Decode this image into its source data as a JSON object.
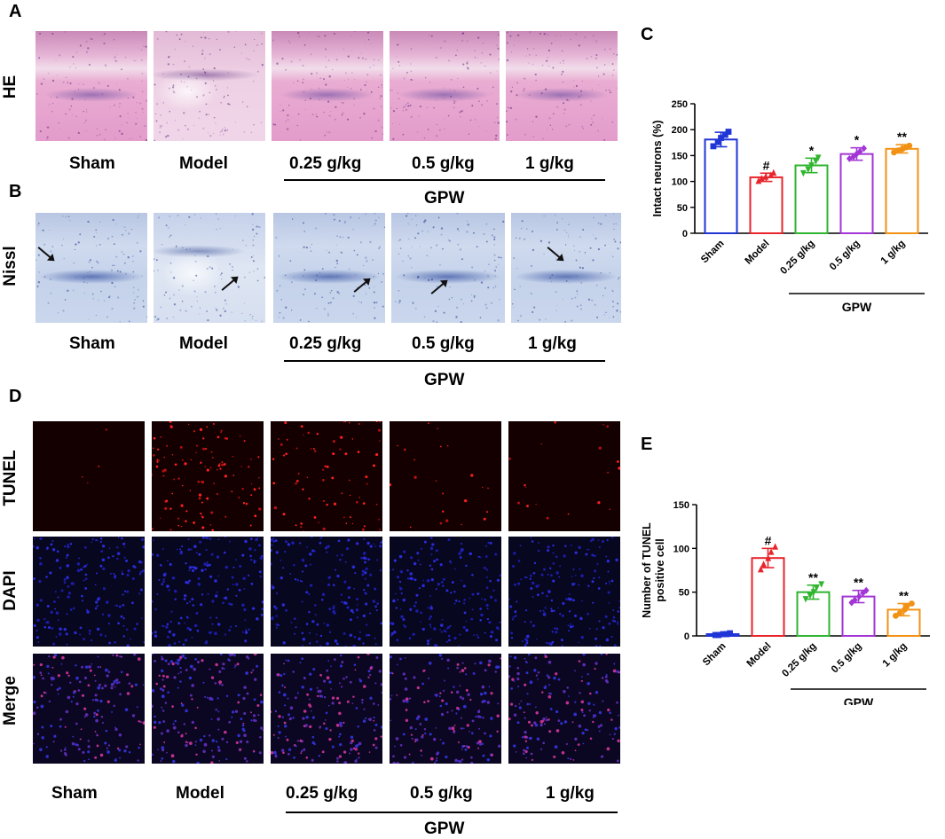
{
  "panels": {
    "A": {
      "letter": "A",
      "row_label": "HE"
    },
    "B": {
      "letter": "B",
      "row_label": "Nissl"
    },
    "D": {
      "letter": "D",
      "row_labels": [
        "TUNEL",
        "DAPI",
        "Merge"
      ]
    },
    "C": {
      "letter": "C"
    },
    "E": {
      "letter": "E"
    }
  },
  "groups": [
    "Sham",
    "Model",
    "0.25 g/kg",
    "0.5 g/kg",
    "1 g/kg"
  ],
  "treatment_label": "GPW",
  "colors": {
    "Sham": "#1f35d6",
    "Model": "#e8252c",
    "0.25 g/kg": "#2fb52f",
    "0.5 g/kg": "#a236d6",
    "1 g/kg": "#f29215"
  },
  "chart_data": [
    {
      "panel": "C",
      "type": "bar",
      "categories": [
        "Sham",
        "Model",
        "0.25 g/kg",
        "0.5 g/kg",
        "1 g/kg"
      ],
      "values": [
        181,
        108,
        131,
        153,
        163
      ],
      "errors": [
        14,
        8,
        14,
        12,
        8
      ],
      "points": [
        [
          168,
          176,
          184,
          190,
          196
        ],
        [
          101,
          106,
          109,
          112,
          117
        ],
        [
          116,
          123,
          131,
          139,
          146
        ],
        [
          144,
          148,
          153,
          158,
          164
        ],
        [
          156,
          160,
          163,
          166,
          169
        ]
      ],
      "significance": [
        "",
        "#",
        "*",
        "*",
        "**"
      ],
      "title": "",
      "xlabel": "",
      "ylabel": "Intact neurons (%)",
      "ylim": [
        0,
        250
      ],
      "yticks": [
        0,
        50,
        100,
        150,
        200,
        250
      ],
      "group_label": "GPW"
    },
    {
      "panel": "E",
      "type": "bar",
      "categories": [
        "Sham",
        "Model",
        "0.25 g/kg",
        "0.5 g/kg",
        "1 g/kg"
      ],
      "values": [
        2,
        89,
        50,
        45,
        30
      ],
      "errors": [
        1,
        11,
        8,
        7,
        7
      ],
      "points": [
        [
          1,
          1,
          2,
          2,
          3
        ],
        [
          76,
          82,
          89,
          96,
          102
        ],
        [
          42,
          46,
          50,
          55,
          59
        ],
        [
          38,
          41,
          45,
          49,
          52
        ],
        [
          23,
          26,
          30,
          34,
          37
        ]
      ],
      "significance": [
        "",
        "#",
        "**",
        "**",
        "**"
      ],
      "title": "",
      "xlabel": "",
      "ylabel": "Number of TUNEL positive cell",
      "ylim": [
        0,
        150
      ],
      "yticks": [
        0,
        50,
        100,
        150
      ],
      "group_label": "GPW"
    }
  ]
}
